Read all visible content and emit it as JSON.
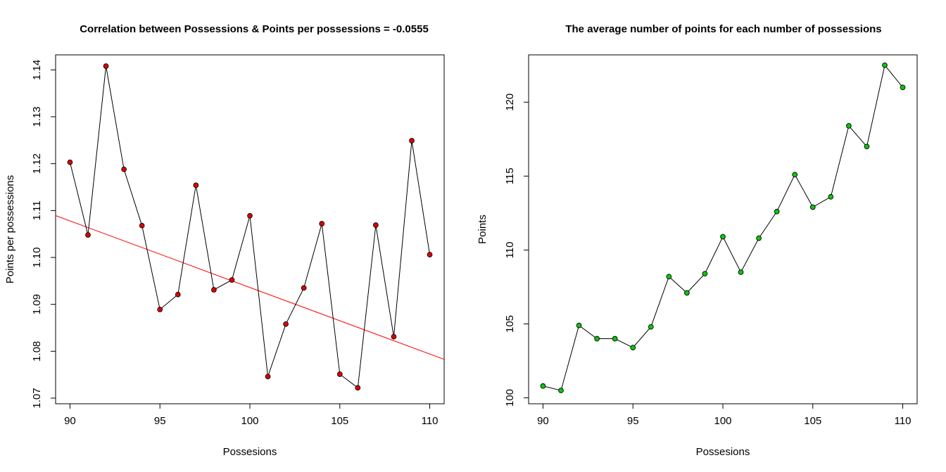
{
  "chart_data": [
    {
      "type": "line",
      "title": "Correlation between Possessions & Points per possessions =  -0.0555",
      "xlabel": "Possesions",
      "ylabel": "Points per possessions",
      "xlim": [
        89.2,
        110.8
      ],
      "ylim": [
        1.0688,
        1.1432
      ],
      "x_ticks": [
        90,
        95,
        100,
        105,
        110
      ],
      "y_ticks": [
        1.07,
        1.08,
        1.09,
        1.1,
        1.11,
        1.12,
        1.13,
        1.14
      ],
      "y_tick_labels": [
        "1.07",
        "1.08",
        "1.09",
        "1.10",
        "1.11",
        "1.12",
        "1.13",
        "1.14"
      ],
      "grid": false,
      "marker_color": "#e00000",
      "line_color": "#000000",
      "series": [
        {
          "x": [
            90,
            91,
            92,
            93,
            94,
            95,
            96,
            97,
            98,
            99,
            100,
            101,
            102,
            103,
            104,
            105,
            106,
            107,
            108,
            109,
            110
          ],
          "y": [
            1.1203,
            1.1048,
            1.1408,
            1.1188,
            1.1068,
            1.0889,
            1.0921,
            1.1154,
            1.0931,
            1.0952,
            1.1089,
            1.0746,
            1.0858,
            1.0935,
            1.1072,
            1.0751,
            1.0722,
            1.1069,
            1.0831,
            1.1249,
            1.1006
          ]
        }
      ],
      "trend_line": {
        "color": "#ff0000",
        "intercept": 1.2355,
        "slope": -0.001419
      }
    },
    {
      "type": "line",
      "title": "The average number of points for each number of possessions",
      "xlabel": "Possesions",
      "ylabel": "Points",
      "xlim": [
        89.2,
        110.8
      ],
      "ylim": [
        99.6,
        123.2
      ],
      "x_ticks": [
        90,
        95,
        100,
        105,
        110
      ],
      "y_ticks": [
        100,
        105,
        110,
        115,
        120
      ],
      "y_tick_labels": [
        "100",
        "105",
        "110",
        "115",
        "120"
      ],
      "grid": false,
      "marker_color": "#00cc00",
      "line_color": "#000000",
      "series": [
        {
          "x": [
            90,
            91,
            92,
            93,
            94,
            95,
            96,
            97,
            98,
            99,
            100,
            101,
            102,
            103,
            104,
            105,
            106,
            107,
            108,
            109,
            110
          ],
          "y": [
            100.8,
            100.5,
            104.9,
            104.0,
            104.0,
            103.4,
            104.8,
            108.2,
            107.1,
            108.4,
            110.9,
            108.5,
            110.8,
            112.6,
            115.1,
            112.9,
            113.6,
            118.4,
            117.0,
            122.5,
            121.0
          ]
        }
      ]
    }
  ]
}
